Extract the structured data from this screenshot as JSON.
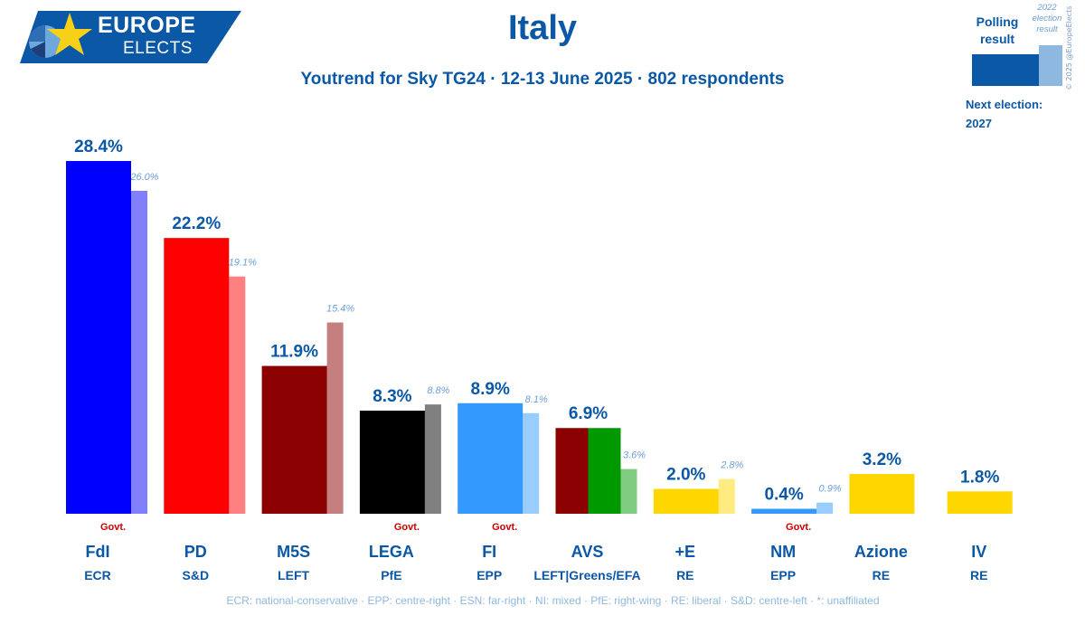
{
  "brand": {
    "line1": "EUROPE",
    "line2": "ELECTS",
    "bg": "#0b58a6",
    "star": "#f7d117"
  },
  "header": {
    "title": "Italy",
    "subtitle": "Youtrend for Sky TG24 · 12-13 June 2025 · 802 respondents"
  },
  "legend": {
    "polling": "Polling result",
    "previous": "2022 election result",
    "next_label": "Next election:",
    "next_year": "2027"
  },
  "copyright": "© 2025 @EuropeElects",
  "footer": "ECR: national-conservative · EPP: centre-right · ESN: far-right · NI: mixed · PfE: right-wing · RE: liberal · S&D: centre-left · *: unaffiliated",
  "chart_data": {
    "type": "bar",
    "ylim": [
      0,
      30
    ],
    "categories": [
      {
        "name": "FdI",
        "group": "ECR",
        "poll": 28.4,
        "poll_label": "28.4%",
        "prev": 26.0,
        "prev_label": "26.0%",
        "govt": true,
        "colors": [
          "#0000ff"
        ],
        "prev_color": "#8080ff"
      },
      {
        "name": "PD",
        "group": "S&D",
        "poll": 22.2,
        "poll_label": "22.2%",
        "prev": 19.1,
        "prev_label": "19.1%",
        "govt": false,
        "colors": [
          "#ff0000"
        ],
        "prev_color": "#ff8080"
      },
      {
        "name": "M5S",
        "group": "LEFT",
        "poll": 11.9,
        "poll_label": "11.9%",
        "prev": 15.4,
        "prev_label": "15.4%",
        "govt": false,
        "colors": [
          "#8b0000"
        ],
        "prev_color": "#c57f7f"
      },
      {
        "name": "LEGA",
        "group": "PfE",
        "poll": 8.3,
        "poll_label": "8.3%",
        "prev": 8.8,
        "prev_label": "8.8%",
        "govt": true,
        "colors": [
          "#000000"
        ],
        "prev_color": "#808080"
      },
      {
        "name": "FI",
        "group": "EPP",
        "poll": 8.9,
        "poll_label": "8.9%",
        "prev": 8.1,
        "prev_label": "8.1%",
        "govt": true,
        "colors": [
          "#3399ff"
        ],
        "prev_color": "#99ccff"
      },
      {
        "name": "AVS",
        "group": "LEFT|Greens/EFA",
        "poll": 6.9,
        "poll_label": "6.9%",
        "prev": 3.6,
        "prev_label": "3.6%",
        "govt": false,
        "colors": [
          "#8b0000",
          "#009900"
        ],
        "prev_color": "#80cc80"
      },
      {
        "name": "+E",
        "group": "RE",
        "poll": 2.0,
        "poll_label": "2.0%",
        "prev": 2.8,
        "prev_label": "2.8%",
        "govt": false,
        "colors": [
          "#ffd700"
        ],
        "prev_color": "#ffeb80"
      },
      {
        "name": "NM",
        "group": "EPP",
        "poll": 0.4,
        "poll_label": "0.4%",
        "prev": 0.9,
        "prev_label": "0.9%",
        "govt": true,
        "colors": [
          "#3399ff"
        ],
        "prev_color": "#99ccff"
      },
      {
        "name": "Azione",
        "group": "RE",
        "poll": 3.2,
        "poll_label": "3.2%",
        "prev": null,
        "prev_label": null,
        "govt": false,
        "colors": [
          "#ffd700"
        ],
        "prev_color": null
      },
      {
        "name": "IV",
        "group": "RE",
        "poll": 1.8,
        "poll_label": "1.8%",
        "prev": null,
        "prev_label": null,
        "govt": false,
        "colors": [
          "#ffd700"
        ],
        "prev_color": null
      }
    ],
    "govt_label": "Govt.",
    "label_color": "#0b58a6",
    "govt_color": "#cc0000",
    "prev_label_color": "#6a9fd8"
  }
}
